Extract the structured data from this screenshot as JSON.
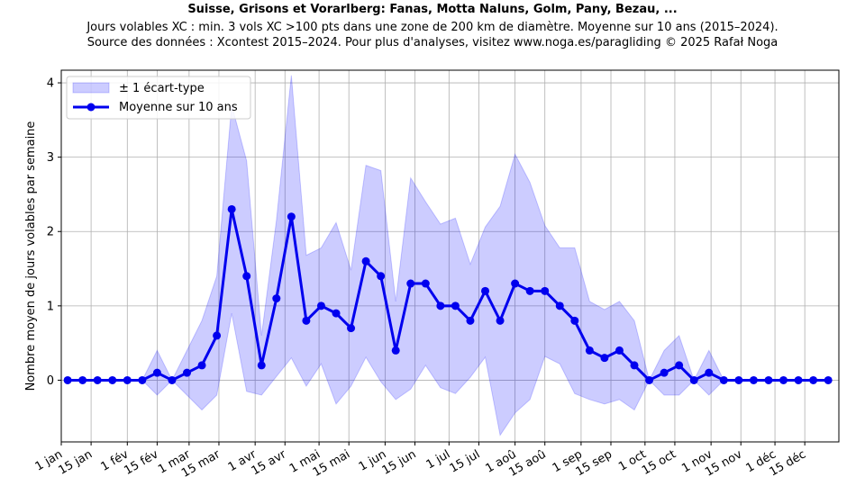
{
  "title": "Suisse, Grisons et Vorarlberg: Fanas, Motta Naluns, Golm, Pany, Bezau, ...",
  "subtitle_1": "Jours volables XC : min. 3 vols XC >100 pts dans une zone de 200 km de diamètre. Moyenne sur 10 ans (2015–2024).",
  "subtitle_2": "Source des données : Xcontest 2015–2024. Pour plus d'analyses, visitez www.noga.es/paragliding © 2025 Rafał Noga",
  "colors": {
    "band": "#0000ff",
    "line": "#0000ee",
    "grid": "#b0b0b0"
  },
  "chart_data": {
    "type": "line",
    "title": "Suisse, Grisons et Vorarlberg: Fanas, Motta Naluns, Golm, Pany, Bezau, ...",
    "xlabel": "",
    "ylabel": "Nombre moyen de jours volables par semaine",
    "ylim": [
      -0.83,
      4.17
    ],
    "xlim": [
      "2024-01-01",
      "2024-12-31"
    ],
    "grid": true,
    "legend_position": "top-left",
    "x_ticks": [
      "2024-01-01",
      "2024-01-15",
      "2024-02-01",
      "2024-02-15",
      "2024-03-01",
      "2024-03-15",
      "2024-04-01",
      "2024-04-15",
      "2024-05-01",
      "2024-05-15",
      "2024-06-01",
      "2024-06-15",
      "2024-07-01",
      "2024-07-15",
      "2024-08-01",
      "2024-08-15",
      "2024-09-01",
      "2024-09-15",
      "2024-10-01",
      "2024-10-15",
      "2024-11-01",
      "2024-11-15",
      "2024-12-01",
      "2024-12-15"
    ],
    "x_tick_labels": [
      "1 jan",
      "15 jan",
      "1 fév",
      "15 fév",
      "1 mar",
      "15 mar",
      "1 avr",
      "15 avr",
      "1 mai",
      "15 mai",
      "1 jun",
      "15 jun",
      "1 jul",
      "15 jul",
      "1 aoû",
      "15 aoû",
      "1 sep",
      "15 sep",
      "1 oct",
      "15 oct",
      "1 nov",
      "15 nov",
      "1 déc",
      "15 déc"
    ],
    "y_ticks": [
      0,
      1,
      2,
      3,
      4
    ],
    "y_tick_labels": [
      "0",
      "1",
      "2",
      "3",
      "4"
    ],
    "x": [
      "2024-01-04",
      "2024-01-11",
      "2024-01-18",
      "2024-01-25",
      "2024-02-01",
      "2024-02-08",
      "2024-02-15",
      "2024-02-22",
      "2024-02-29",
      "2024-03-07",
      "2024-03-14",
      "2024-03-21",
      "2024-03-28",
      "2024-04-04",
      "2024-04-11",
      "2024-04-18",
      "2024-04-25",
      "2024-05-02",
      "2024-05-09",
      "2024-05-16",
      "2024-05-23",
      "2024-05-30",
      "2024-06-06",
      "2024-06-13",
      "2024-06-20",
      "2024-06-27",
      "2024-07-04",
      "2024-07-11",
      "2024-07-18",
      "2024-07-25",
      "2024-08-01",
      "2024-08-08",
      "2024-08-15",
      "2024-08-22",
      "2024-08-29",
      "2024-09-05",
      "2024-09-12",
      "2024-09-19",
      "2024-09-26",
      "2024-10-03",
      "2024-10-10",
      "2024-10-17",
      "2024-10-24",
      "2024-10-31",
      "2024-11-07",
      "2024-11-14",
      "2024-11-21",
      "2024-11-28",
      "2024-12-05",
      "2024-12-12",
      "2024-12-19",
      "2024-12-26"
    ],
    "series": [
      {
        "name": "Moyenne sur 10 ans",
        "values": [
          0,
          0,
          0,
          0,
          0,
          0,
          0.1,
          0,
          0.1,
          0.2,
          0.6,
          2.3,
          1.4,
          0.2,
          1.1,
          2.2,
          0.8,
          1.0,
          0.9,
          0.7,
          1.6,
          1.4,
          0.4,
          1.3,
          1.3,
          1.0,
          1.0,
          0.8,
          1.2,
          0.8,
          1.3,
          1.2,
          1.2,
          1.0,
          0.8,
          0.4,
          0.3,
          0.4,
          0.2,
          0,
          0.1,
          0.2,
          0,
          0.1,
          0,
          0,
          0,
          0,
          0,
          0,
          0,
          0
        ]
      },
      {
        "name": "± 1 écart-type",
        "lower": [
          0,
          0,
          0,
          0,
          0,
          0,
          -0.2,
          0,
          -0.2,
          -0.4,
          -0.2,
          0.9,
          -0.15,
          -0.2,
          0.05,
          0.3,
          -0.08,
          0.22,
          -0.32,
          -0.08,
          0.31,
          -0.02,
          -0.26,
          -0.12,
          0.2,
          -0.1,
          -0.18,
          0.04,
          0.31,
          -0.74,
          -0.44,
          -0.26,
          0.32,
          0.22,
          -0.18,
          -0.26,
          -0.32,
          -0.26,
          -0.4,
          0,
          -0.2,
          -0.2,
          0,
          -0.2,
          0,
          0,
          0,
          0,
          0,
          0,
          0,
          0
        ],
        "upper": [
          0,
          0,
          0,
          0,
          0,
          0,
          0.4,
          0,
          0.4,
          0.8,
          1.4,
          3.7,
          2.95,
          0.6,
          2.15,
          4.1,
          1.68,
          1.78,
          2.12,
          1.48,
          2.89,
          2.82,
          1.06,
          2.72,
          2.4,
          2.1,
          2.18,
          1.56,
          2.06,
          2.34,
          3.04,
          2.66,
          2.08,
          1.78,
          1.78,
          1.06,
          0.95,
          1.06,
          0.8,
          0,
          0.4,
          0.6,
          0,
          0.4,
          0,
          0,
          0,
          0,
          0,
          0,
          0,
          0
        ]
      }
    ]
  }
}
